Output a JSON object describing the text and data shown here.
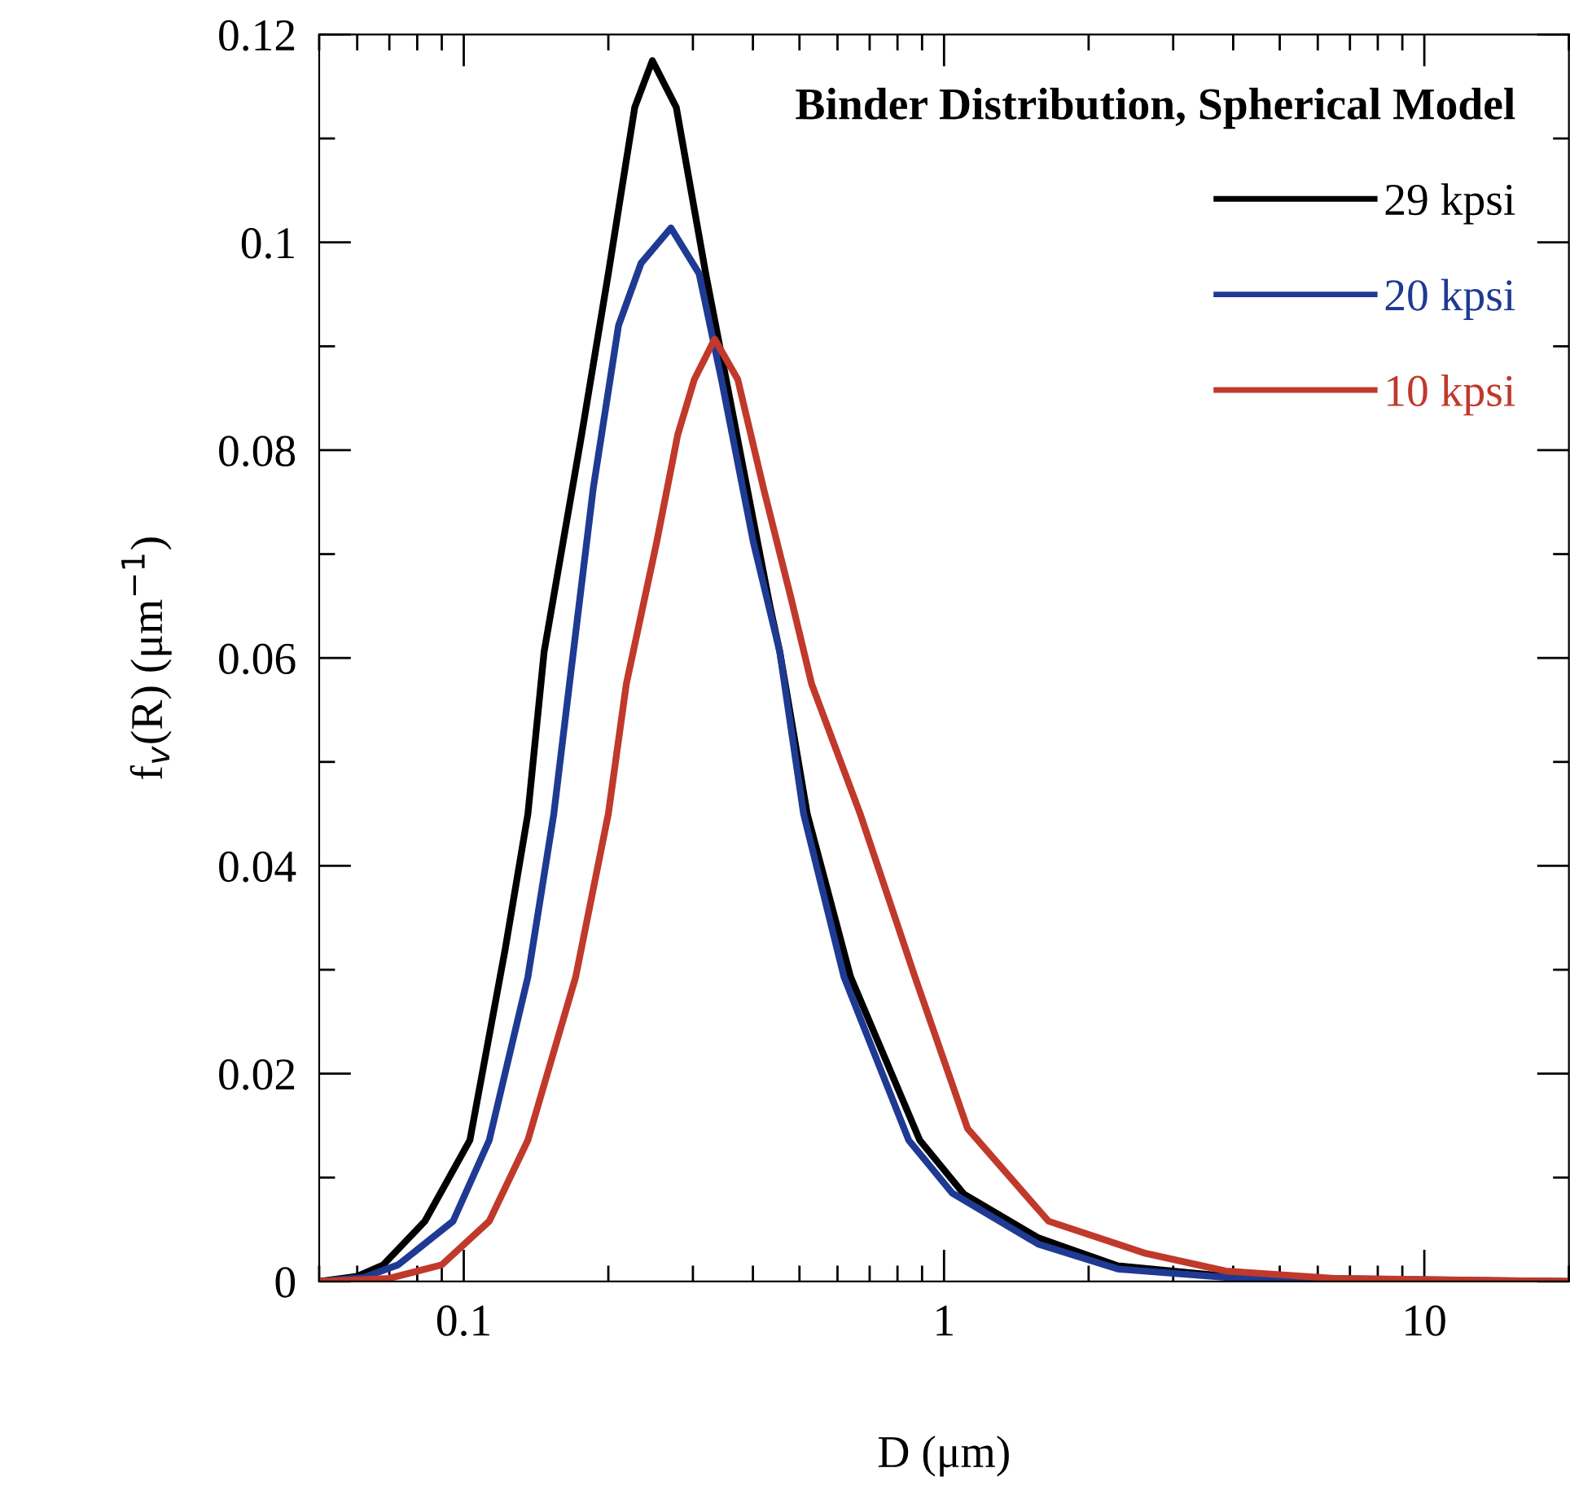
{
  "chart_data": {
    "type": "line",
    "legend_title": "Binder Distribution, Spherical Model",
    "xlabel": "D (μm)",
    "ylabel": "f$_{v}$(R) (μm$^{−1}$)",
    "log": "x",
    "xlim": [
      0.05,
      20
    ],
    "xticks": [
      0.1,
      1,
      10
    ],
    "ylim": [
      0,
      0.12
    ],
    "yticks": [
      0,
      0.02,
      0.04,
      0.06,
      0.08,
      0.1,
      0.12
    ],
    "grid": false,
    "legend": "top right",
    "marker": "none",
    "line_style": "solid",
    "series": [
      {
        "name": "29 kpsi",
        "color": "#000000",
        "x": [
          0.05,
          0.06,
          0.068,
          0.083,
          0.103,
          0.122,
          0.136,
          0.147,
          0.176,
          0.2,
          0.227,
          0.247,
          0.277,
          0.319,
          0.372,
          0.434,
          0.455,
          0.519,
          0.639,
          0.89,
          1.1,
          1.57,
          2.3,
          3.86,
          6.5,
          20
        ],
        "values": [
          0,
          0.0005,
          0.0016,
          0.0058,
          0.0136,
          0.032,
          0.045,
          0.0606,
          0.0815,
          0.097,
          0.113,
          0.1175,
          0.113,
          0.097,
          0.081,
          0.065,
          0.0606,
          0.045,
          0.0293,
          0.0136,
          0.0084,
          0.0042,
          0.0015,
          0.0005,
          0.0001,
          0
        ]
      },
      {
        "name": "20 kpsi",
        "color": "#1f3a93",
        "x": [
          0.05,
          0.062,
          0.073,
          0.095,
          0.113,
          0.136,
          0.154,
          0.166,
          0.186,
          0.21,
          0.234,
          0.27,
          0.309,
          0.344,
          0.401,
          0.455,
          0.51,
          0.619,
          0.844,
          1.04,
          1.57,
          2.3,
          3.86,
          20
        ],
        "values": [
          0,
          0.0004,
          0.0016,
          0.0058,
          0.0136,
          0.0293,
          0.045,
          0.0575,
          0.0763,
          0.092,
          0.098,
          0.1014,
          0.097,
          0.0868,
          0.0711,
          0.0606,
          0.045,
          0.0293,
          0.0136,
          0.0085,
          0.0036,
          0.0012,
          0.0004,
          0
        ]
      },
      {
        "name": "10 kpsi",
        "color": "#c0392b",
        "x": [
          0.05,
          0.07,
          0.09,
          0.113,
          0.136,
          0.171,
          0.2,
          0.218,
          0.252,
          0.279,
          0.302,
          0.333,
          0.372,
          0.421,
          0.48,
          0.53,
          0.669,
          0.87,
          1.12,
          1.65,
          2.63,
          3.86,
          6.5,
          20
        ],
        "values": [
          0,
          0.0003,
          0.0016,
          0.0058,
          0.0136,
          0.0293,
          0.045,
          0.0575,
          0.0711,
          0.0815,
          0.0868,
          0.0907,
          0.0868,
          0.0763,
          0.0658,
          0.0575,
          0.045,
          0.0293,
          0.0147,
          0.0058,
          0.0027,
          0.001,
          0.0003,
          0
        ]
      }
    ]
  }
}
